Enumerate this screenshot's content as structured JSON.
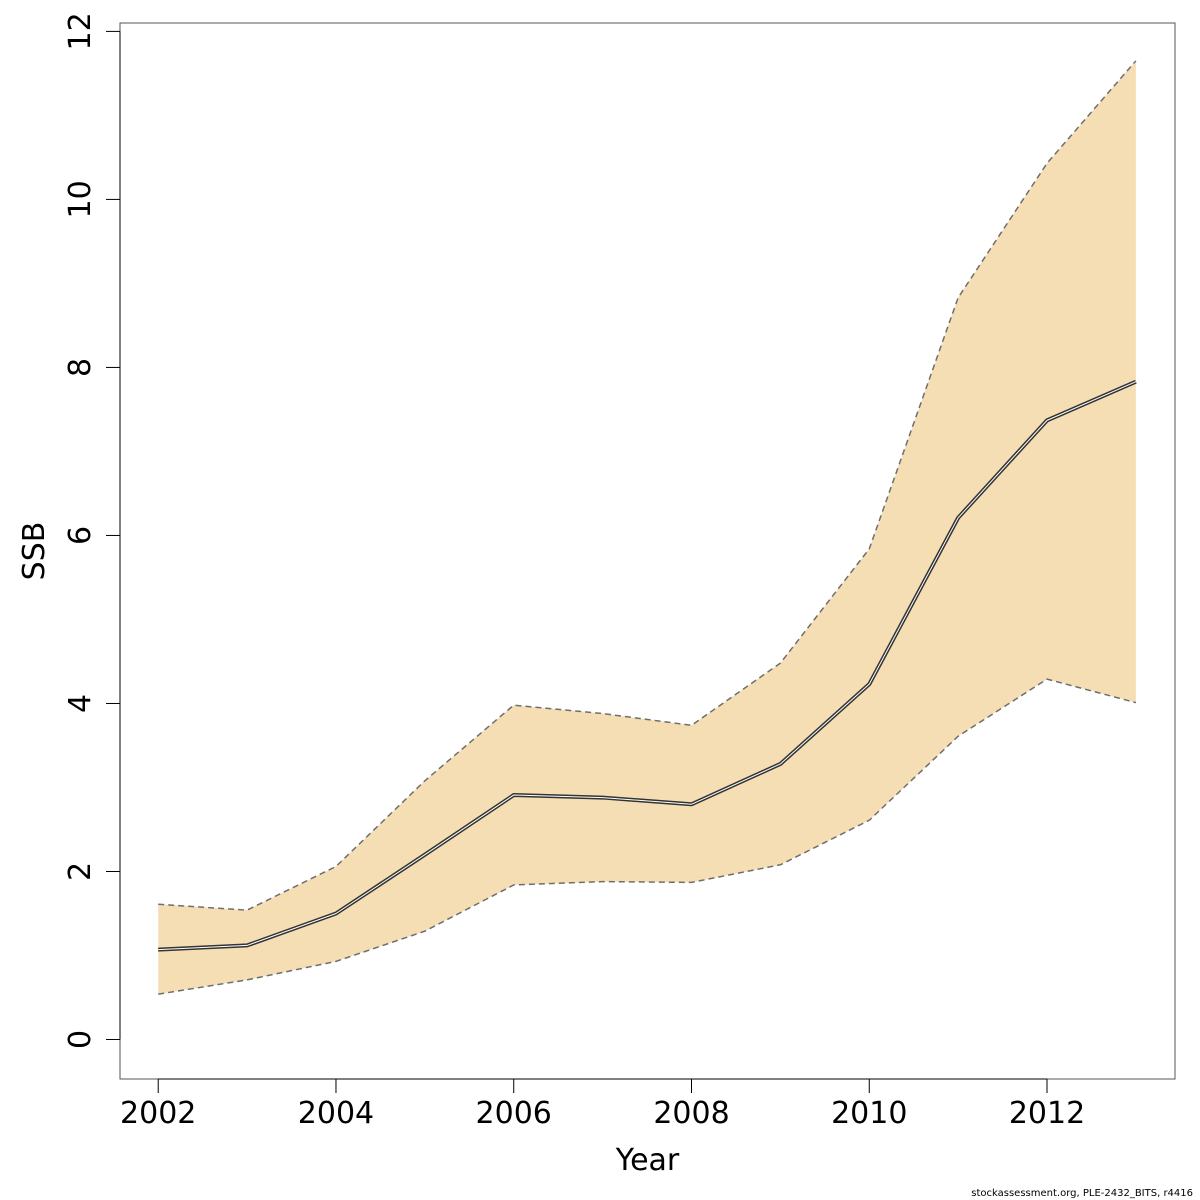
{
  "chart_data": {
    "type": "area",
    "xlabel": "Year",
    "ylabel": "SSB",
    "xlim": [
      2001.57,
      2013.44
    ],
    "ylim": [
      -0.47,
      12.1
    ],
    "x_ticks": [
      2002,
      2004,
      2006,
      2008,
      2010,
      2012
    ],
    "y_ticks": [
      0,
      2,
      4,
      6,
      8,
      10,
      12
    ],
    "grid": false,
    "legend": "none",
    "x": [
      2002,
      2003,
      2004,
      2005,
      2006,
      2007,
      2008,
      2009,
      2010,
      2011,
      2012,
      2013
    ],
    "series": [
      {
        "role": "estimate",
        "values": [
          1.07,
          1.12,
          1.5,
          2.2,
          2.91,
          2.88,
          2.8,
          3.28,
          4.23,
          6.21,
          7.37,
          7.83
        ]
      },
      {
        "role": "upper",
        "values": [
          1.61,
          1.54,
          2.06,
          3.08,
          3.98,
          3.88,
          3.74,
          4.48,
          5.84,
          8.83,
          10.43,
          11.65
        ]
      },
      {
        "role": "lower",
        "values": [
          0.54,
          0.71,
          0.93,
          1.29,
          1.84,
          1.88,
          1.87,
          2.08,
          2.61,
          3.61,
          4.29,
          4.01
        ]
      }
    ],
    "colors": {
      "band_fill": "#f5deb3",
      "bound_line": "#6e6e6e",
      "estimate_line": "#333333",
      "estimate_halo": "#ffffff",
      "axis": "#000000"
    },
    "footer": "stockassessment.org, PLE-2432_BITS, r4416"
  }
}
